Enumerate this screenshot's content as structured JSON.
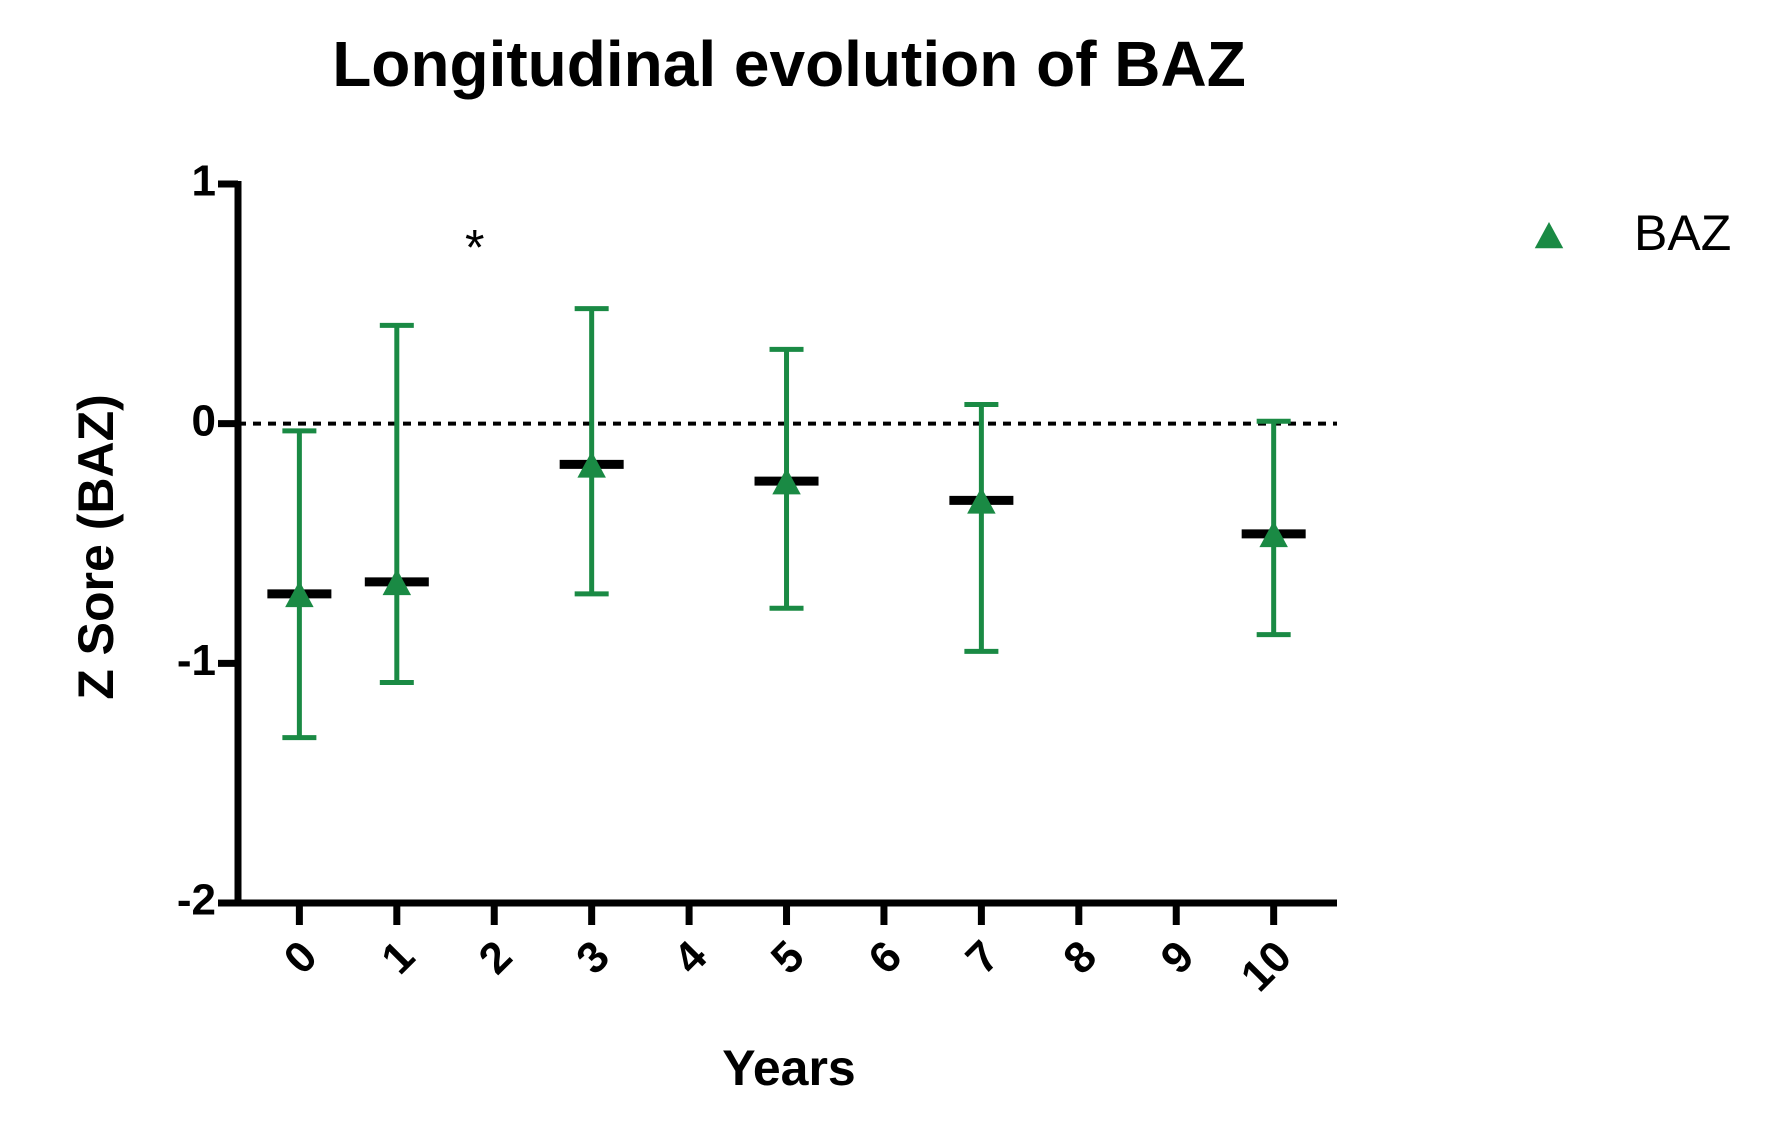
{
  "chart_data": {
    "type": "errorbar",
    "title": "Longitudinal evolution of BAZ",
    "x_label": "Years",
    "y_label": "Z Sore (BAZ)",
    "xlim": [
      -0.63,
      10.65
    ],
    "xticks": [
      0,
      1,
      2,
      3,
      4,
      5,
      6,
      7,
      8,
      9,
      10
    ],
    "ylim": [
      -2,
      1
    ],
    "yticks": [
      -2,
      -1,
      0,
      1
    ],
    "reference_line": 0,
    "legend": "top-right",
    "series": [
      {
        "name": "BAZ",
        "color": "#1a8a44",
        "mean_color": "#000000",
        "x": [
          0,
          1,
          3,
          5,
          7,
          10
        ],
        "values": [
          -0.71,
          -0.66,
          -0.17,
          -0.24,
          -0.32,
          -0.46
        ],
        "lower": [
          -1.31,
          -1.08,
          -0.71,
          -0.77,
          -0.95,
          -0.88
        ],
        "upper": [
          -0.03,
          0.41,
          0.48,
          0.31,
          0.08,
          0.01
        ]
      }
    ],
    "annotations": [
      {
        "text": "*",
        "x": 1.8,
        "y": 0.72
      }
    ]
  }
}
